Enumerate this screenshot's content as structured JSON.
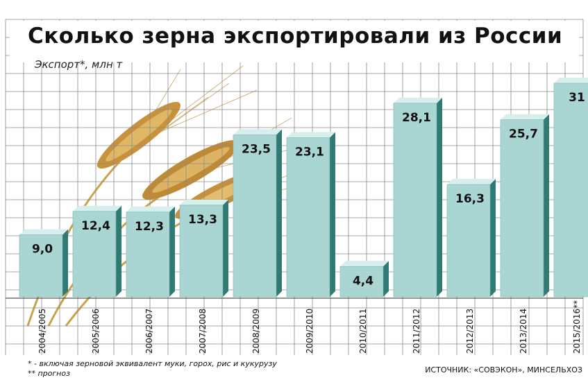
{
  "header": {
    "title": "Сколько зерна экспортировали из России",
    "subtitle": "Экспорт*, млн т"
  },
  "footer": {
    "note1": "* - включая зерновой эквивалент муки, горох, рис и кукурузу",
    "note2": "** прогноз",
    "source": "ИСТОЧНИК: «СОВЭКОН», МИНСЕЛЬХОЗ"
  },
  "colors": {
    "bar_front": "#a9d6d3",
    "bar_side": "#2f7a72",
    "bar_top": "#d6eeec",
    "grid": "#8a8a8a",
    "text": "#111111"
  },
  "chart_data": {
    "type": "bar",
    "title": "Сколько зерна экспортировали из России",
    "ylabel": "Экспорт*, млн т",
    "xlabel": "",
    "categories": [
      "2004/2005",
      "2005/2006",
      "2006/2007",
      "2007/2008",
      "2008/2009",
      "2009/2010",
      "2010/2011",
      "2011/2012",
      "2012/2013",
      "2013/2014",
      "2015/2016**"
    ],
    "value_labels": [
      "9,0",
      "12,4",
      "12,3",
      "13,3",
      "23,5",
      "23,1",
      "4,4",
      "28,1",
      "16,3",
      "25,7",
      "31"
    ],
    "values": [
      9.0,
      12.4,
      12.3,
      13.3,
      23.5,
      23.1,
      4.4,
      28.1,
      16.3,
      25.7,
      31
    ],
    "ylim": [
      0,
      31
    ],
    "grid": true,
    "legend": "none"
  }
}
